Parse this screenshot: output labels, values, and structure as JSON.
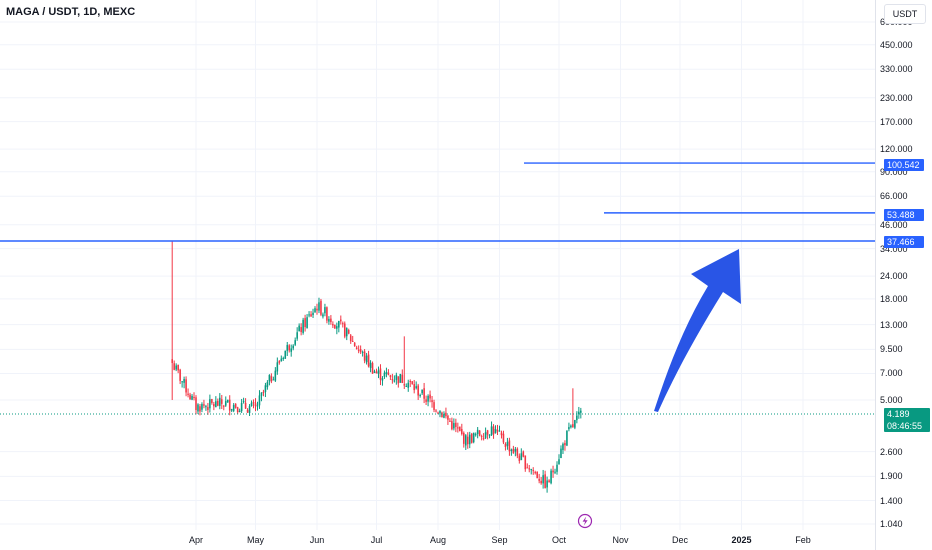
{
  "header": {
    "symbol": "MAGA / USDT, 1D, MEXC",
    "currency_button": "USDT"
  },
  "price_badge": {
    "price": "4.189",
    "countdown": "08:46:55"
  },
  "level_badges": [
    "100.542",
    "53.488",
    "37.466"
  ],
  "event_icon": "lightning-icon",
  "colors": {
    "up": "#089981",
    "down": "#f23645",
    "level": "#2962ff",
    "arrow": "#2955e6"
  },
  "chart_data": {
    "type": "candlestick",
    "symbol": "MAGA / USDT",
    "interval": "1D",
    "exchange": "MEXC",
    "y_scale": "log",
    "y_ticks": [
      "600.000",
      "450.000",
      "330.000",
      "230.000",
      "170.000",
      "120.000",
      "90.000",
      "66.000",
      "46.000",
      "34.000",
      "24.000",
      "18.000",
      "13.000",
      "9.500",
      "7.000",
      "5.000",
      "2.600",
      "1.900",
      "1.400",
      "1.040"
    ],
    "x_ticks": [
      "Apr",
      "May",
      "Jun",
      "Jul",
      "Aug",
      "Sep",
      "Oct",
      "Nov",
      "Dec",
      "2025",
      "Feb"
    ],
    "last_price": 4.189,
    "horizontal_levels": [
      100.542,
      53.488,
      37.466
    ],
    "close_path": [
      {
        "date": "2024-03-20",
        "close": 8.0,
        "high": 37.466,
        "low": 5.0
      },
      {
        "date": "2024-04-01",
        "close": 4.6,
        "high": 6.5,
        "low": 3.8
      },
      {
        "date": "2024-04-15",
        "close": 4.8,
        "high": 6.2,
        "low": 4.0
      },
      {
        "date": "2024-05-01",
        "close": 4.5,
        "high": 5.5,
        "low": 4.0
      },
      {
        "date": "2024-05-15",
        "close": 9.0,
        "high": 10.5,
        "low": 7.5
      },
      {
        "date": "2024-06-01",
        "close": 16.5,
        "high": 18.0,
        "low": 12.0
      },
      {
        "date": "2024-06-15",
        "close": 12.0,
        "high": 14.0,
        "low": 10.0
      },
      {
        "date": "2024-07-01",
        "close": 7.0,
        "high": 9.0,
        "low": 6.0
      },
      {
        "date": "2024-07-15",
        "close": 6.5,
        "high": 11.0,
        "low": 5.5
      },
      {
        "date": "2024-08-01",
        "close": 4.5,
        "high": 6.5,
        "low": 3.8
      },
      {
        "date": "2024-08-15",
        "close": 3.0,
        "high": 4.0,
        "low": 2.6
      },
      {
        "date": "2024-08-28",
        "close": 3.5,
        "high": 4.0,
        "low": 3.0
      },
      {
        "date": "2024-09-15",
        "close": 2.2,
        "high": 3.0,
        "low": 1.9
      },
      {
        "date": "2024-09-25",
        "close": 1.7,
        "high": 2.0,
        "low": 1.65
      },
      {
        "date": "2024-10-05",
        "close": 3.2,
        "high": 3.8,
        "low": 2.8
      },
      {
        "date": "2024-10-12",
        "close": 4.189,
        "high": 5.8,
        "low": 3.8
      }
    ]
  }
}
